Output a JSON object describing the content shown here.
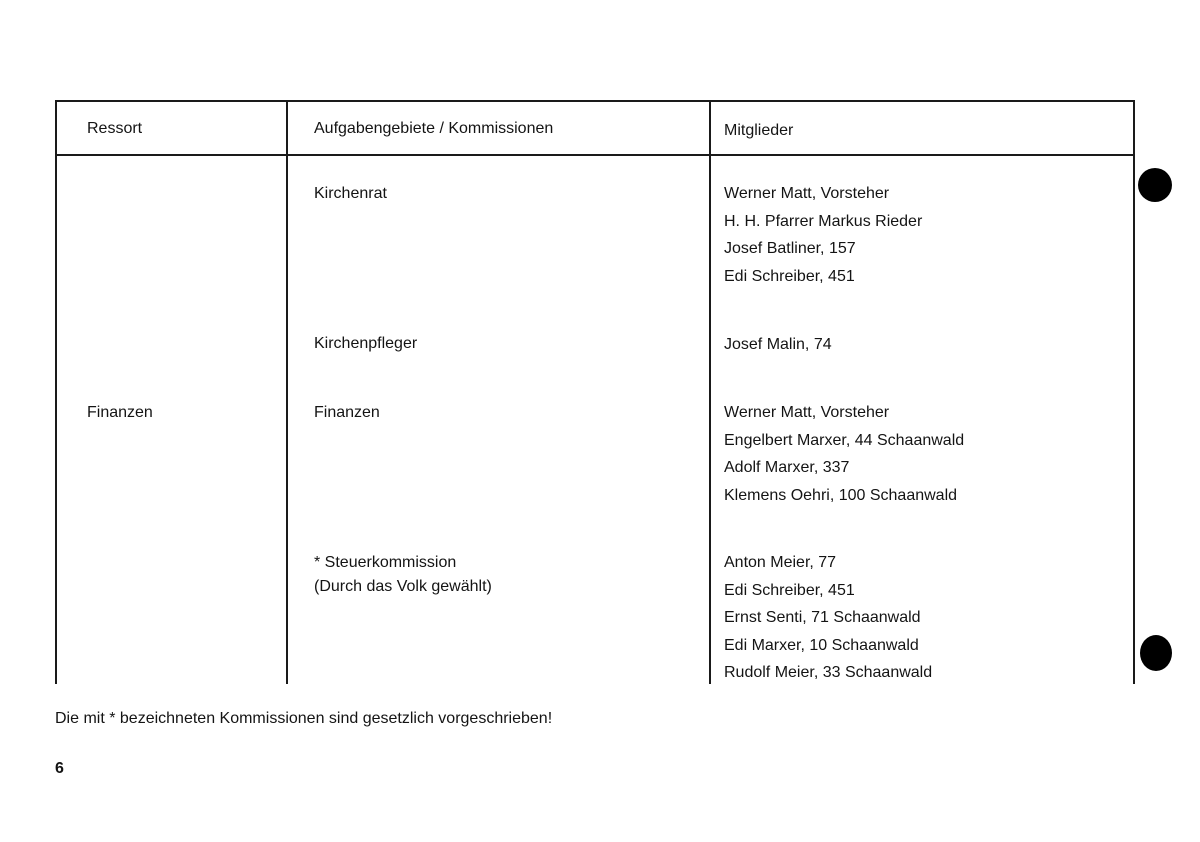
{
  "table": {
    "headers": [
      "Ressort",
      "Aufgabengebiete / Kommissionen",
      "Mitglieder"
    ],
    "ressort": "Finanzen",
    "rows": [
      {
        "task": [
          "Kirchenrat"
        ],
        "members": [
          "Werner Matt, Vorsteher",
          "H. H. Pfarrer Markus Rieder",
          "Josef Batliner, 157",
          "Edi Schreiber, 451"
        ]
      },
      {
        "task": [
          "Kirchenpfleger"
        ],
        "members": [
          "Josef Malin, 74"
        ]
      },
      {
        "task": [
          "Finanzen"
        ],
        "members": [
          "Werner Matt, Vorsteher",
          "Engelbert Marxer, 44 Schaanwald",
          "Adolf Marxer, 337",
          "Klemens Oehri, 100 Schaanwald"
        ]
      },
      {
        "task": [
          "* Steuerkommission",
          "(Durch das Volk gewählt)"
        ],
        "members": [
          "Anton Meier, 77",
          "Edi Schreiber, 451",
          "Ernst Senti, 71 Schaanwald",
          "Edi Marxer, 10 Schaanwald",
          "Rudolf Meier, 33 Schaanwald"
        ]
      }
    ]
  },
  "footnote": "Die mit * bezeichneten Kommissionen sind gesetzlich vorgeschrieben!",
  "page_number": "6"
}
